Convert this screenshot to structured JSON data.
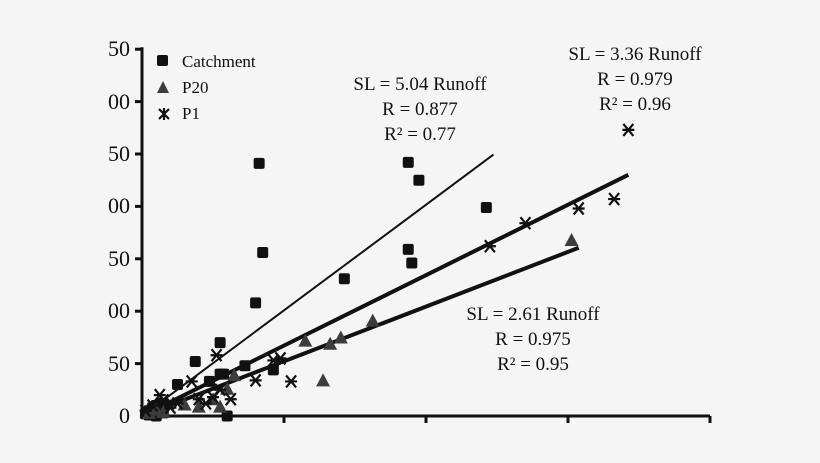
{
  "chart_data": {
    "type": "scatter",
    "title": "",
    "xlabel": "",
    "ylabel": "",
    "xlim": [
      0,
      80
    ],
    "ylim": [
      0,
      350
    ],
    "x_ticks": [
      0,
      20,
      40,
      60,
      80
    ],
    "x_tick_labels": [
      "",
      "",
      "",
      "",
      ""
    ],
    "y_ticks": [
      0,
      50,
      100,
      150,
      200,
      250,
      300,
      350
    ],
    "y_tick_labels": [
      "0",
      "50",
      "00",
      "50",
      "00",
      "50",
      "00",
      "50"
    ],
    "grid": false,
    "legend_position": "top-left",
    "legend": [
      {
        "name": "Catchment",
        "marker": "square",
        "color": "#111111"
      },
      {
        "name": "P20",
        "marker": "triangle",
        "color": "#3c3c3c"
      },
      {
        "name": "P1",
        "marker": "star",
        "color": "#111111"
      }
    ],
    "series": [
      {
        "name": "Catchment",
        "marker": "square",
        "points": [
          [
            0.5,
            2
          ],
          [
            1,
            5
          ],
          [
            1.5,
            8
          ],
          [
            2,
            10
          ],
          [
            2.5,
            4
          ],
          [
            3,
            12
          ],
          [
            1,
            1
          ],
          [
            2,
            0
          ],
          [
            3,
            3
          ],
          [
            5,
            30
          ],
          [
            7.5,
            52
          ],
          [
            9.5,
            33
          ],
          [
            11,
            40
          ],
          [
            11,
            70
          ],
          [
            11.5,
            40
          ],
          [
            12,
            0
          ],
          [
            14.5,
            48
          ],
          [
            16,
            108
          ],
          [
            16.5,
            241
          ],
          [
            17,
            156
          ],
          [
            18.5,
            44
          ],
          [
            28.5,
            131
          ],
          [
            37.5,
            159
          ],
          [
            37.5,
            242
          ],
          [
            38,
            146
          ],
          [
            39,
            225
          ],
          [
            48.5,
            199
          ]
        ],
        "fit": {
          "slope": 5.04,
          "x_end": 49.5,
          "label": [
            "SL = 5.04 Runoff",
            "R = 0.877",
            "R² = 0.77"
          ]
        }
      },
      {
        "name": "P20",
        "marker": "triangle",
        "points": [
          [
            1,
            2
          ],
          [
            2,
            5
          ],
          [
            3,
            3
          ],
          [
            6,
            10
          ],
          [
            8,
            8
          ],
          [
            10,
            15
          ],
          [
            11,
            8
          ],
          [
            12,
            25
          ],
          [
            13,
            38
          ],
          [
            23,
            71
          ],
          [
            25.5,
            33
          ],
          [
            26.5,
            68
          ],
          [
            28,
            74
          ],
          [
            32.5,
            90
          ],
          [
            60.5,
            167
          ]
        ],
        "fit": {
          "slope": 2.61,
          "x_end": 61.5,
          "label": [
            "SL = 2.61 Runoff",
            "R = 0.975",
            "R² = 0.95"
          ]
        }
      },
      {
        "name": "P1",
        "marker": "star",
        "points": [
          [
            0.5,
            5
          ],
          [
            1.5,
            10
          ],
          [
            2.5,
            20
          ],
          [
            3,
            15
          ],
          [
            4,
            8
          ],
          [
            5,
            12
          ],
          [
            7,
            33
          ],
          [
            8,
            16
          ],
          [
            9,
            12
          ],
          [
            10,
            18
          ],
          [
            10.5,
            58
          ],
          [
            11,
            25
          ],
          [
            12.5,
            16
          ],
          [
            16,
            34
          ],
          [
            18.5,
            53
          ],
          [
            19.5,
            55
          ],
          [
            21,
            33
          ],
          [
            49,
            162
          ],
          [
            54,
            184
          ],
          [
            61.5,
            198
          ],
          [
            66.5,
            207
          ],
          [
            68.5,
            273
          ]
        ],
        "fit": {
          "slope": 3.36,
          "x_end": 68.5,
          "label": [
            "SL = 3.36 Runoff",
            "R = 0.979",
            "R² = 0.96"
          ]
        }
      }
    ],
    "annotations": [
      {
        "text": [
          "SL = 5.04 Runoff",
          "R = 0.877",
          "R² = 0.77"
        ],
        "near": "Catchment fit"
      },
      {
        "text": [
          "SL = 3.36 Runoff",
          "R = 0.979",
          "R² = 0.96"
        ],
        "near": "P1 fit"
      },
      {
        "text": [
          "SL = 2.61 Runoff",
          "R = 0.975",
          "R² = 0.95"
        ],
        "near": "P20 fit"
      }
    ]
  },
  "legend": {
    "catchment": "Catchment",
    "p20": "P20",
    "p1": "P1"
  },
  "annotations": {
    "catchment": {
      "l1": "SL = 5.04 Runoff",
      "l2": "R = 0.877",
      "l3": "R² = 0.77"
    },
    "p1": {
      "l1": "SL = 3.36 Runoff",
      "l2": "R = 0.979",
      "l3": "R² = 0.96"
    },
    "p20": {
      "l1": "SL = 2.61 Runoff",
      "l2": "R = 0.975",
      "l3": "R² = 0.95"
    }
  }
}
